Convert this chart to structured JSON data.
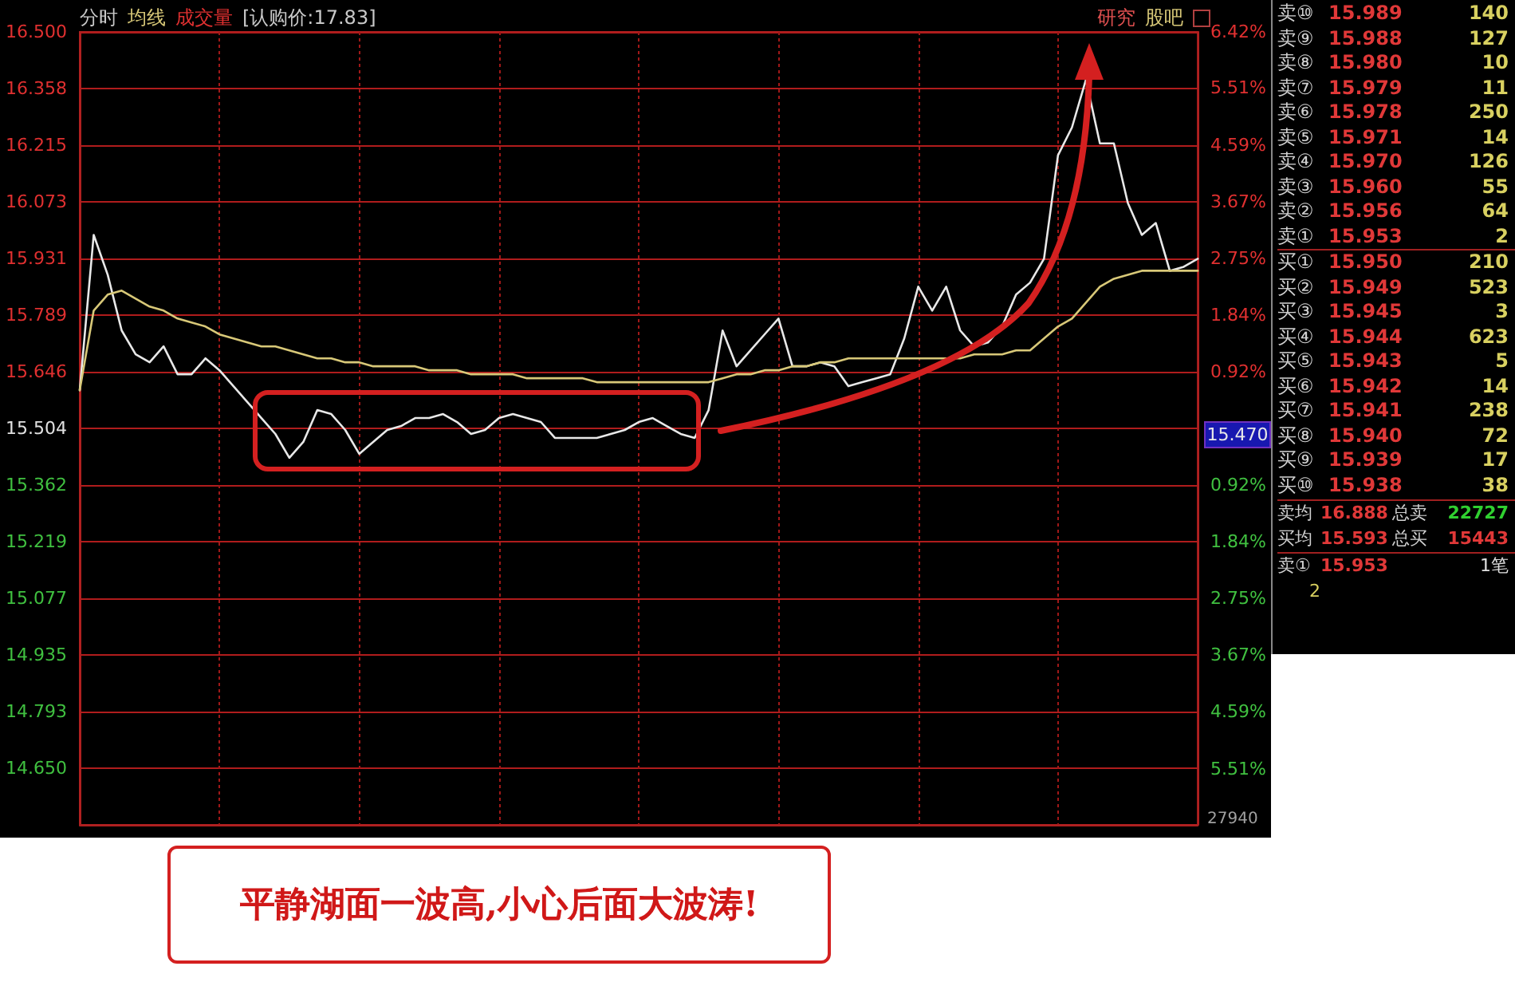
{
  "chart_data": [
    {
      "type": "line",
      "title": "分时",
      "marker": "none",
      "line_style": "solid",
      "grid": true,
      "categories": [
        null,
        null,
        null,
        null,
        null,
        null,
        null,
        null,
        null,
        null,
        null,
        null,
        null,
        null,
        null,
        null,
        null,
        null,
        null,
        null,
        null,
        null,
        null,
        null,
        null,
        null,
        null,
        null,
        null,
        null,
        null,
        null,
        null,
        null,
        null,
        null,
        null,
        null,
        null,
        null,
        null,
        null,
        null,
        null,
        null,
        null,
        null,
        null,
        null,
        null,
        null,
        null,
        null,
        null,
        null,
        null,
        null,
        null,
        null,
        null,
        null,
        null,
        null,
        null,
        null,
        null,
        null,
        null,
        null,
        null,
        null,
        null,
        null,
        null,
        null,
        null,
        null,
        null,
        null,
        null,
        null
      ],
      "ylim": [
        14.508,
        16.5
      ],
      "yticks": [
        {
          "value": 14.65,
          "label": "14.650"
        },
        {
          "value": 14.793,
          "label": "14.793"
        },
        {
          "value": 14.935,
          "label": "14.935"
        },
        {
          "value": 15.077,
          "label": "15.077"
        },
        {
          "value": 15.219,
          "label": "15.219"
        },
        {
          "value": 15.362,
          "label": "15.362"
        },
        {
          "value": 15.504,
          "label": "15.504"
        },
        {
          "value": 15.646,
          "label": "15.646"
        },
        {
          "value": 15.789,
          "label": "15.789"
        },
        {
          "value": 15.931,
          "label": "15.931"
        },
        {
          "value": 16.073,
          "label": "16.073"
        },
        {
          "value": 16.215,
          "label": "16.215"
        },
        {
          "value": 16.358,
          "label": "16.358"
        },
        {
          "value": 16.5,
          "label": "16.500"
        }
      ],
      "y2lim": [
        -6.42,
        6.42
      ],
      "y2ticks": [
        {
          "value": -5.51,
          "label": "5.51%"
        },
        {
          "value": -4.59,
          "label": "4.59%"
        },
        {
          "value": -3.67,
          "label": "3.67%"
        },
        {
          "value": -2.75,
          "label": "2.75%"
        },
        {
          "value": -1.84,
          "label": "1.84%"
        },
        {
          "value": -0.92,
          "label": "0.92%"
        },
        {
          "value": 0.92,
          "label": "0.92%"
        },
        {
          "value": 1.84,
          "label": "1.84%"
        },
        {
          "value": 2.75,
          "label": "2.75%"
        },
        {
          "value": 3.67,
          "label": "3.67%"
        },
        {
          "value": 4.59,
          "label": "4.59%"
        },
        {
          "value": 5.51,
          "label": "5.51%"
        },
        {
          "value": 6.42,
          "label": "6.42%"
        }
      ],
      "series": [
        {
          "color": "#e8e8e8",
          "values": [
            15.6,
            15.99,
            15.89,
            15.75,
            15.69,
            15.67,
            15.71,
            15.64,
            15.64,
            15.68,
            15.65,
            15.61,
            15.57,
            15.53,
            15.49,
            15.43,
            15.47,
            15.55,
            15.54,
            15.5,
            15.44,
            15.47,
            15.5,
            15.51,
            15.53,
            15.53,
            15.54,
            15.52,
            15.49,
            15.5,
            15.53,
            15.54,
            15.53,
            15.52,
            15.48,
            15.48,
            15.48,
            15.48,
            15.49,
            15.5,
            15.52,
            15.53,
            15.51,
            15.49,
            15.48,
            15.55,
            15.75,
            15.66,
            15.7,
            15.74,
            15.78,
            15.66,
            15.66,
            15.67,
            15.66,
            15.61,
            15.62,
            15.63,
            15.64,
            15.73,
            15.86,
            15.8,
            15.86,
            15.75,
            15.71,
            15.72,
            15.76,
            15.84,
            15.87,
            15.93,
            16.19,
            16.26,
            16.38,
            16.22,
            16.22,
            16.07,
            15.99,
            16.02,
            15.9,
            15.91,
            15.93
          ]
        },
        {
          "name": "均线",
          "color": "#d8c878",
          "values": [
            15.6,
            15.8,
            15.84,
            15.85,
            15.83,
            15.81,
            15.8,
            15.78,
            15.77,
            15.76,
            15.74,
            15.73,
            15.72,
            15.71,
            15.71,
            15.7,
            15.69,
            15.68,
            15.68,
            15.67,
            15.67,
            15.66,
            15.66,
            15.66,
            15.66,
            15.65,
            15.65,
            15.65,
            15.64,
            15.64,
            15.64,
            15.64,
            15.63,
            15.63,
            15.63,
            15.63,
            15.63,
            15.62,
            15.62,
            15.62,
            15.62,
            15.62,
            15.62,
            15.62,
            15.62,
            15.62,
            15.63,
            15.64,
            15.64,
            15.65,
            15.65,
            15.66,
            15.66,
            15.67,
            15.67,
            15.68,
            15.68,
            15.68,
            15.68,
            15.68,
            15.68,
            15.68,
            15.68,
            15.68,
            15.69,
            15.69,
            15.69,
            15.7,
            15.7,
            15.73,
            15.76,
            15.78,
            15.82,
            15.86,
            15.88,
            15.89,
            15.9,
            15.9,
            15.9,
            15.9,
            15.9
          ]
        }
      ],
      "annotations": [
        "成交量",
        "[认购价:17.83]",
        "研究",
        "股吧",
        "15.470",
        "27940",
        "平静湖面一波高,小心后面大波涛!"
      ]
    },
    {
      "type": "other",
      "categories": [
        "卖⑩",
        "卖⑨",
        "卖⑧",
        "卖⑦",
        "卖⑥",
        "卖⑤",
        "卖④",
        "卖③",
        "卖②",
        "卖①",
        "买①",
        "买②",
        "买③",
        "买④",
        "买⑤",
        "买⑥",
        "买⑦",
        "买⑧",
        "买⑨",
        "买⑩"
      ],
      "data_labels": true,
      "series": [
        {
          "values": [
            15.989,
            15.988,
            15.98,
            15.979,
            15.978,
            15.971,
            15.97,
            15.96,
            15.956,
            15.953,
            15.95,
            15.949,
            15.945,
            15.944,
            15.943,
            15.942,
            15.941,
            15.94,
            15.939,
            15.938
          ],
          "value_labels": [
            "15.989",
            "15.988",
            "15.980",
            "15.979",
            "15.978",
            "15.971",
            "15.970",
            "15.960",
            "15.956",
            "15.953",
            "15.950",
            "15.949",
            "15.945",
            "15.944",
            "15.943",
            "15.942",
            "15.941",
            "15.940",
            "15.939",
            "15.938"
          ]
        },
        {
          "values": [
            140,
            127,
            10,
            11,
            250,
            14,
            126,
            55,
            64,
            2,
            210,
            523,
            3,
            623,
            5,
            14,
            238,
            72,
            17,
            38
          ]
        }
      ],
      "annotations": [
        "卖均 16.888 总卖 22727",
        "买均 15.593 总买 15443",
        "卖① 15.953 1笔",
        "2"
      ]
    }
  ]
}
